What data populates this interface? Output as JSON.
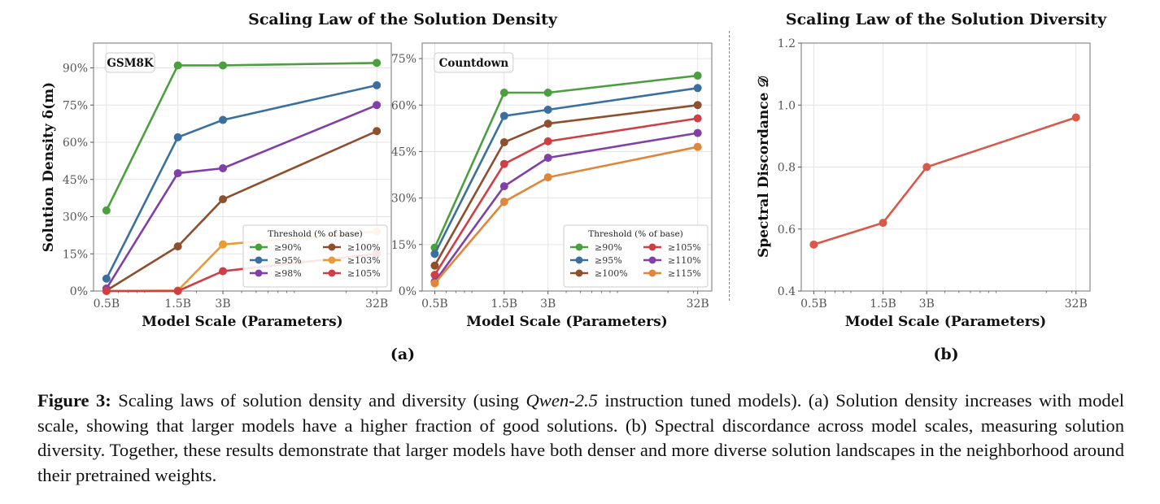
{
  "figure": {
    "panel_a_title": "Scaling Law of the Solution Density",
    "panel_b_title": "Scaling Law of the Solution Diversity",
    "panel_a_label": "(a)",
    "panel_b_label": "(b)",
    "caption": {
      "label": "Figure 3:",
      "part1": "Scaling laws of solution density and diversity (using ",
      "model": "Qwen-2.5",
      "part2": " instruction tuned models). (a) Solution density increases with model scale, showing that larger models have a higher fraction of good solutions. (b) Spectral discordance across model scales, measuring solution diversity. Together, these results demonstrate that larger models have both denser and more diverse solution landscapes in the neighborhood around their pretrained weights."
    }
  },
  "chart_data": [
    {
      "id": "gsm8k",
      "type": "line",
      "title": "GSM8K",
      "xlabel": "Model Scale (Parameters)",
      "ylabel": "Solution Density δ(m)",
      "x_scale": "log",
      "x": [
        0.5,
        1.5,
        3,
        32
      ],
      "x_tick_labels": [
        "0.5B",
        "1.5B",
        "3B",
        "32B"
      ],
      "ylim": [
        0,
        100
      ],
      "y_ticks": [
        0,
        15,
        30,
        45,
        60,
        75,
        90
      ],
      "y_tick_labels": [
        "0%",
        "15%",
        "30%",
        "45%",
        "60%",
        "75%",
        "90%"
      ],
      "grid": true,
      "legend": {
        "title": "Threshold (% of base)",
        "position": "bottom-right",
        "columns": 2
      },
      "series": [
        {
          "name": "≥90%",
          "color": "#4c9f3f",
          "values": [
            32.5,
            91.0,
            91.0,
            92.0
          ]
        },
        {
          "name": "≥95%",
          "color": "#3a6f9e",
          "values": [
            5.0,
            62.0,
            69.0,
            83.0
          ]
        },
        {
          "name": "≥98%",
          "color": "#8040a8",
          "values": [
            1.0,
            47.5,
            49.5,
            75.0
          ]
        },
        {
          "name": "≥100%",
          "color": "#8e4f2e",
          "values": [
            0.2,
            18.0,
            37.0,
            64.5
          ]
        },
        {
          "name": "≥103%",
          "color": "#e99a35",
          "values": [
            0.0,
            0.2,
            18.8,
            24.0
          ]
        },
        {
          "name": "≥105%",
          "color": "#cf3f45",
          "values": [
            0.0,
            0.0,
            8.0,
            15.0
          ]
        }
      ]
    },
    {
      "id": "countdown",
      "type": "line",
      "title": "Countdown",
      "xlabel": "Model Scale (Parameters)",
      "ylabel": "",
      "x_scale": "log",
      "x": [
        0.5,
        1.5,
        3,
        32
      ],
      "x_tick_labels": [
        "0.5B",
        "1.5B",
        "3B",
        "32B"
      ],
      "ylim": [
        0,
        80
      ],
      "y_ticks": [
        0,
        15,
        30,
        45,
        60,
        75
      ],
      "y_tick_labels": [
        "0%",
        "15%",
        "30%",
        "45%",
        "60%",
        "75%"
      ],
      "grid": true,
      "legend": {
        "title": "Threshold (% of base)",
        "position": "bottom-right",
        "columns": 2
      },
      "series": [
        {
          "name": "≥90%",
          "color": "#4c9f3f",
          "values": [
            14.0,
            64.0,
            64.0,
            69.5
          ]
        },
        {
          "name": "≥95%",
          "color": "#3a6f9e",
          "values": [
            12.0,
            56.5,
            58.5,
            65.5
          ]
        },
        {
          "name": "≥100%",
          "color": "#8e4f2e",
          "values": [
            8.2,
            48.0,
            54.0,
            60.0
          ]
        },
        {
          "name": "≥105%",
          "color": "#cf3f45",
          "values": [
            5.2,
            41.0,
            48.3,
            55.7
          ]
        },
        {
          "name": "≥110%",
          "color": "#8040a8",
          "values": [
            3.0,
            33.8,
            43.0,
            51.0
          ]
        },
        {
          "name": "≥115%",
          "color": "#e0863a",
          "values": [
            2.5,
            28.8,
            36.7,
            46.5
          ]
        }
      ]
    },
    {
      "id": "diversity",
      "type": "line",
      "title": "",
      "xlabel": "Model Scale (Parameters)",
      "ylabel": "Spectral Discordance 𝒟",
      "x_scale": "log",
      "x": [
        0.5,
        1.5,
        3,
        32
      ],
      "x_tick_labels": [
        "0.5B",
        "1.5B",
        "3B",
        "32B"
      ],
      "ylim": [
        0.4,
        1.2
      ],
      "y_ticks": [
        0.4,
        0.6,
        0.8,
        1.0,
        1.2
      ],
      "y_tick_labels": [
        "0.4",
        "0.6",
        "0.8",
        "1.0",
        "1.2"
      ],
      "grid": true,
      "series": [
        {
          "name": "Spectral Discordance",
          "color": "#d9584a",
          "values": [
            0.55,
            0.62,
            0.8,
            0.96
          ]
        }
      ]
    }
  ]
}
